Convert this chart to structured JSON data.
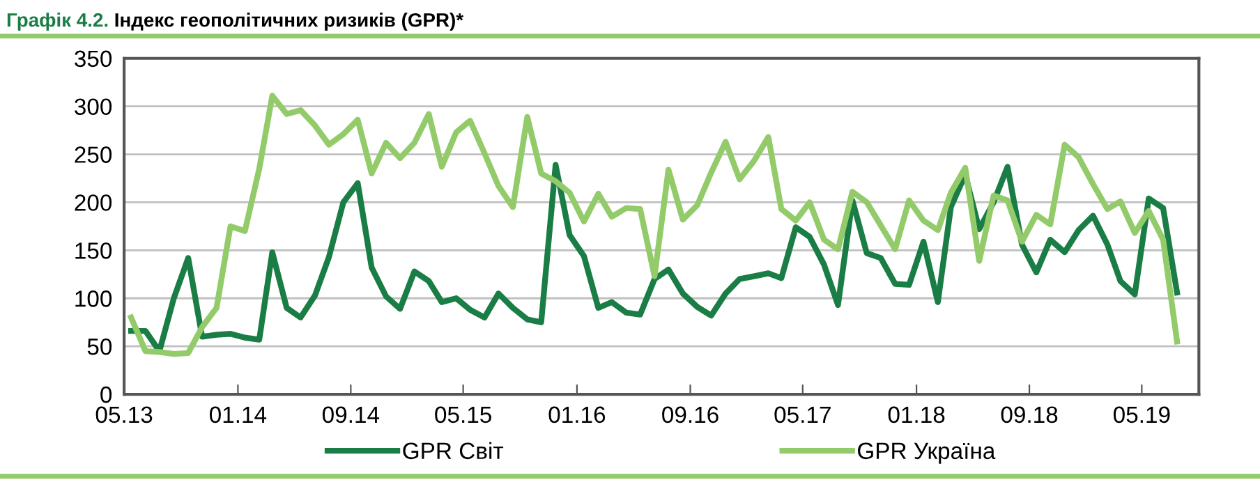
{
  "chart_data": {
    "type": "line",
    "title": "Графік 4.2.",
    "subtitle": "Індекс геополітичних ризиків (GPR)*",
    "x": [
      "2013-05-16",
      "2013-06-16",
      "2013-07-16",
      "2013-08-16",
      "2013-09-16",
      "2013-10-16",
      "2013-11-16",
      "2013-12-16",
      "2014-01-16",
      "2014-02-16",
      "2014-03-16",
      "2014-04-16",
      "2014-05-16",
      "2014-06-16",
      "2014-07-16",
      "2014-08-16",
      "2014-09-16",
      "2014-10-16",
      "2014-11-16",
      "2014-12-16",
      "2015-01-16",
      "2015-02-16",
      "2015-03-16",
      "2015-04-16",
      "2015-05-16",
      "2015-06-16",
      "2015-07-16",
      "2015-08-16",
      "2015-09-16",
      "2015-10-16",
      "2015-11-16",
      "2015-12-16",
      "2016-01-16",
      "2016-02-16",
      "2016-03-16",
      "2016-04-16",
      "2016-05-16",
      "2016-06-16",
      "2016-07-16",
      "2016-08-16",
      "2016-09-16",
      "2016-10-16",
      "2016-11-16",
      "2016-12-16",
      "2017-01-16",
      "2017-02-16",
      "2017-03-16",
      "2017-04-16",
      "2017-05-16",
      "2017-06-16",
      "2017-07-16",
      "2017-08-16",
      "2017-09-16",
      "2017-10-16",
      "2017-11-16",
      "2017-12-16",
      "2018-01-16",
      "2018-02-16",
      "2018-03-16",
      "2018-04-16",
      "2018-05-16",
      "2018-06-16",
      "2018-07-16",
      "2018-08-16",
      "2018-09-16",
      "2018-10-16",
      "2018-11-16",
      "2018-12-16",
      "2019-01-16",
      "2019-02-16",
      "2019-03-16",
      "2019-04-16",
      "2019-05-16",
      "2019-06-16",
      "2019-07-16"
    ],
    "series": [
      {
        "name": "GPR Світ",
        "color": "#1a7d45",
        "values": [
          66,
          66,
          45,
          100,
          142,
          60,
          62,
          63,
          59,
          57,
          148,
          90,
          80,
          103,
          143,
          200,
          220,
          132,
          102,
          89,
          128,
          118,
          96,
          100,
          88,
          80,
          105,
          90,
          78,
          75,
          239,
          166,
          144,
          90,
          96,
          85,
          83,
          120,
          130,
          105,
          91,
          82,
          105,
          120,
          123,
          126,
          121,
          174,
          164,
          135,
          93,
          202,
          147,
          142,
          115,
          114,
          159,
          96,
          195,
          229,
          172,
          200,
          237,
          156,
          127,
          161,
          148,
          171,
          186,
          156,
          118,
          104,
          204,
          194,
          106
        ]
      },
      {
        "name": "GPR Україна",
        "color": "#93cb6b",
        "values": [
          80,
          45,
          44,
          42,
          43,
          70,
          90,
          175,
          170,
          235,
          311,
          292,
          296,
          280,
          260,
          271,
          286,
          230,
          262,
          246,
          262,
          292,
          237,
          273,
          285,
          251,
          217,
          195,
          289,
          230,
          222,
          210,
          180,
          209,
          185,
          194,
          193,
          123,
          234,
          182,
          197,
          231,
          263,
          224,
          243,
          268,
          193,
          181,
          200,
          161,
          151,
          211,
          200,
          176,
          151,
          202,
          181,
          171,
          210,
          236,
          139,
          207,
          202,
          159,
          187,
          177,
          260,
          247,
          219,
          193,
          201,
          168,
          191,
          161,
          55
        ]
      }
    ],
    "xlim": [
      "2013-05",
      "2019-09"
    ],
    "xticks": [
      {
        "value": "2013-05",
        "label": "05.13"
      },
      {
        "value": "2014-01",
        "label": "01.14"
      },
      {
        "value": "2014-09",
        "label": "09.14"
      },
      {
        "value": "2015-05",
        "label": "05.15"
      },
      {
        "value": "2016-01",
        "label": "01.16"
      },
      {
        "value": "2016-09",
        "label": "09.16"
      },
      {
        "value": "2017-05",
        "label": "05.17"
      },
      {
        "value": "2018-01",
        "label": "01.18"
      },
      {
        "value": "2018-09",
        "label": "09.18"
      },
      {
        "value": "2019-05",
        "label": "05.19"
      }
    ],
    "ylim": [
      0,
      350
    ],
    "yticks": [
      0,
      50,
      100,
      150,
      200,
      250,
      300,
      350
    ],
    "grid": "y",
    "legend": "bottom",
    "marker": "none",
    "line_style": "solid"
  }
}
